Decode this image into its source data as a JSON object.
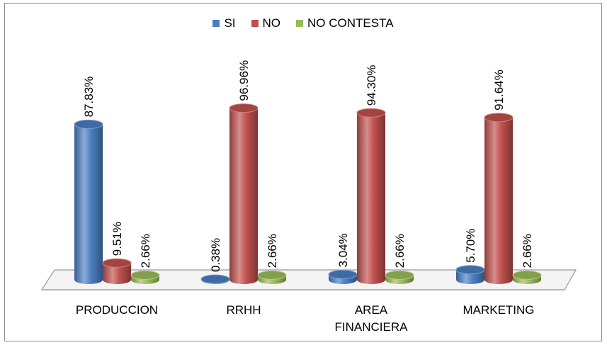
{
  "chart_data": {
    "type": "bar",
    "style": "3d-cylinder",
    "categories": [
      "PRODUCCION",
      "RRHH",
      "AREA FINANCIERA",
      "MARKETING"
    ],
    "series": [
      {
        "name": "SI",
        "values": [
          87.83,
          0.38,
          3.04,
          5.7
        ],
        "labels": [
          "87.83%",
          "0.38%",
          "3.04%",
          "5.70%"
        ],
        "color": "#4a7ec1"
      },
      {
        "name": "NO",
        "values": [
          9.51,
          96.96,
          94.3,
          91.64
        ],
        "labels": [
          "9.51%",
          "96.96%",
          "94.30%",
          "91.64%"
        ],
        "color": "#c0504d"
      },
      {
        "name": "NO CONTESTA",
        "values": [
          2.66,
          2.66,
          2.66,
          2.66
        ],
        "labels": [
          "2.66%",
          "2.66%",
          "2.66%",
          "2.66%"
        ],
        "color": "#9bbb59"
      }
    ],
    "ylim": [
      0,
      100
    ],
    "grid": false,
    "legend_position": "top-center",
    "data_label_orientation": "vertical"
  }
}
